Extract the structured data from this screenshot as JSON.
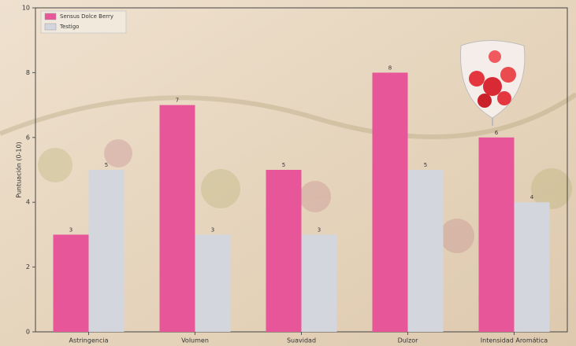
{
  "chart_data": {
    "type": "bar",
    "categories": [
      "Astringencia",
      "Volumen",
      "Suavidad",
      "Dulzor",
      "Intensidad Aromática"
    ],
    "series": [
      {
        "name": "Sensus Dolce Berry",
        "color": "#e8569a",
        "values": [
          3,
          7,
          5,
          8,
          6
        ]
      },
      {
        "name": "Testigo",
        "color": "#d3d6dc",
        "values": [
          5,
          3,
          3,
          5,
          4
        ]
      }
    ],
    "ylabel": "Puntuación (0-10)",
    "ylim": [
      0,
      10
    ],
    "yticks": [
      0,
      2,
      4,
      6,
      8,
      10
    ],
    "legend": "upper left"
  }
}
